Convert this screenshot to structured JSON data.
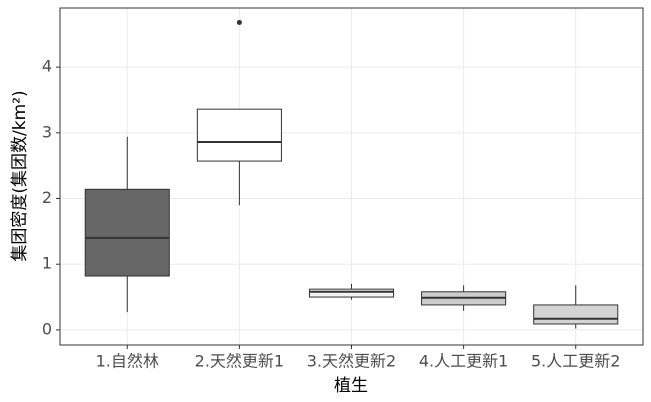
{
  "chart_data": {
    "type": "box",
    "x_label": "植生",
    "y_label": "集团密度(集团数/km²)",
    "categories": [
      "1.自然林",
      "2.天然更新1",
      "3.天然更新2",
      "4.人工更新1",
      "5.人工更新2"
    ],
    "min": [
      0.27,
      1.9,
      0.46,
      0.29,
      0.02
    ],
    "q1": [
      0.82,
      2.57,
      0.5,
      0.38,
      0.09
    ],
    "median": [
      1.4,
      2.86,
      0.58,
      0.49,
      0.17
    ],
    "q3": [
      2.14,
      3.36,
      0.62,
      0.58,
      0.38
    ],
    "max": [
      2.94,
      3.36,
      0.7,
      0.68,
      0.68
    ],
    "outliers": [
      [],
      [
        4.68
      ],
      [],
      [],
      []
    ],
    "colors": [
      "#666666",
      "#ffffff",
      "#f4f4f4",
      "#cccccc",
      "#d4d4d4"
    ],
    "ylim": [
      -0.23,
      4.9
    ],
    "yticks": [
      0,
      1,
      2,
      3,
      4
    ],
    "grid": true
  }
}
